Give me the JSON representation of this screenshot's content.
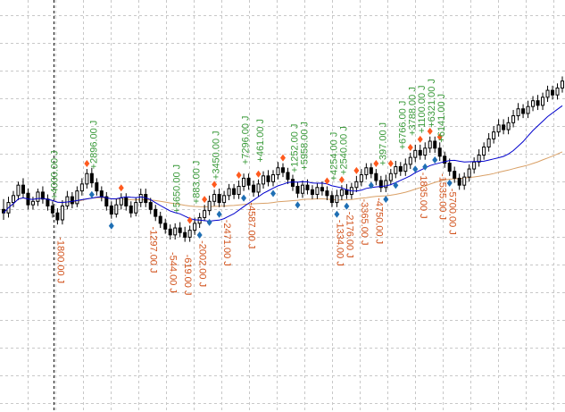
{
  "chart_data": {
    "type": "candlestick",
    "grid": true,
    "colors": {
      "bull_body": "#ffffff",
      "bear_body": "#000000",
      "candle_outline": "#000000",
      "grid": "#c8c8c8",
      "ma_fast": "#0000cc",
      "ma_slow": "#d9a066",
      "annotation_profit": "#3a9a3a",
      "annotation_loss": "#d2541e",
      "marker_buy": "#1f6fb4",
      "marker_sell": "#ff5a1e"
    },
    "candles": [
      [
        193,
        190,
        202,
        184
      ],
      [
        190,
        199,
        204,
        186
      ],
      [
        199,
        205,
        209,
        195
      ],
      [
        205,
        214,
        217,
        201
      ],
      [
        214,
        207,
        220,
        203
      ],
      [
        207,
        197,
        211,
        193
      ],
      [
        197,
        200,
        204,
        193
      ],
      [
        200,
        208,
        211,
        196
      ],
      [
        208,
        202,
        213,
        198
      ],
      [
        202,
        196,
        206,
        192
      ],
      [
        196,
        190,
        200,
        186
      ],
      [
        190,
        184,
        194,
        180
      ],
      [
        184,
        196,
        201,
        180
      ],
      [
        196,
        204,
        209,
        193
      ],
      [
        204,
        198,
        208,
        194
      ],
      [
        198,
        209,
        213,
        195
      ],
      [
        209,
        215,
        220,
        205
      ],
      [
        215,
        224,
        228,
        211
      ],
      [
        224,
        216,
        229,
        212
      ],
      [
        216,
        209,
        220,
        205
      ],
      [
        209,
        204,
        213,
        200
      ],
      [
        204,
        196,
        208,
        192
      ],
      [
        196,
        189,
        200,
        185
      ],
      [
        189,
        197,
        202,
        186
      ],
      [
        197,
        203,
        207,
        193
      ],
      [
        203,
        196,
        207,
        192
      ],
      [
        196,
        190,
        200,
        186
      ],
      [
        190,
        199,
        203,
        187
      ],
      [
        199,
        206,
        211,
        195
      ],
      [
        206,
        199,
        211,
        195
      ],
      [
        199,
        193,
        203,
        189
      ],
      [
        193,
        187,
        197,
        183
      ],
      [
        187,
        181,
        191,
        177
      ],
      [
        181,
        176,
        185,
        172
      ],
      [
        176,
        171,
        180,
        167
      ],
      [
        171,
        177,
        181,
        167
      ],
      [
        177,
        173,
        182,
        169
      ],
      [
        173,
        169,
        178,
        165
      ],
      [
        169,
        175,
        179,
        165
      ],
      [
        175,
        181,
        186,
        171
      ],
      [
        181,
        186,
        190,
        177
      ],
      [
        186,
        192,
        197,
        183
      ],
      [
        192,
        200,
        205,
        188
      ],
      [
        200,
        206,
        210,
        196
      ],
      [
        206,
        199,
        211,
        195
      ],
      [
        199,
        205,
        209,
        195
      ],
      [
        205,
        211,
        215,
        201
      ],
      [
        211,
        206,
        215,
        202
      ],
      [
        206,
        213,
        218,
        202
      ],
      [
        213,
        220,
        224,
        209
      ],
      [
        220,
        214,
        224,
        210
      ],
      [
        214,
        208,
        218,
        204
      ],
      [
        208,
        215,
        219,
        204
      ],
      [
        215,
        222,
        226,
        211
      ],
      [
        222,
        217,
        227,
        213
      ],
      [
        217,
        223,
        227,
        213
      ],
      [
        223,
        229,
        234,
        219
      ],
      [
        229,
        225,
        233,
        221
      ],
      [
        225,
        219,
        229,
        215
      ],
      [
        219,
        213,
        223,
        209
      ],
      [
        213,
        207,
        217,
        203
      ],
      [
        207,
        214,
        218,
        203
      ],
      [
        214,
        210,
        219,
        206
      ],
      [
        210,
        206,
        214,
        202
      ],
      [
        206,
        212,
        216,
        202
      ],
      [
        212,
        209,
        217,
        205
      ],
      [
        209,
        205,
        213,
        201
      ],
      [
        205,
        199,
        209,
        195
      ],
      [
        199,
        205,
        210,
        195
      ],
      [
        205,
        210,
        214,
        201
      ],
      [
        210,
        206,
        215,
        202
      ],
      [
        206,
        212,
        216,
        202
      ],
      [
        212,
        217,
        222,
        208
      ],
      [
        217,
        223,
        228,
        213
      ],
      [
        223,
        229,
        233,
        219
      ],
      [
        229,
        224,
        233,
        220
      ],
      [
        224,
        218,
        228,
        214
      ],
      [
        218,
        212,
        222,
        208
      ],
      [
        212,
        218,
        223,
        208
      ],
      [
        218,
        224,
        228,
        214
      ],
      [
        224,
        230,
        235,
        220
      ],
      [
        230,
        226,
        234,
        222
      ],
      [
        226,
        232,
        237,
        222
      ],
      [
        232,
        238,
        242,
        228
      ],
      [
        238,
        244,
        249,
        234
      ],
      [
        244,
        240,
        249,
        236
      ],
      [
        240,
        246,
        251,
        236
      ],
      [
        246,
        252,
        256,
        242
      ],
      [
        252,
        246,
        256,
        242
      ],
      [
        246,
        239,
        251,
        235
      ],
      [
        239,
        233,
        243,
        229
      ],
      [
        233,
        226,
        237,
        222
      ],
      [
        226,
        220,
        230,
        216
      ],
      [
        220,
        214,
        224,
        210
      ],
      [
        214,
        221,
        225,
        210
      ],
      [
        221,
        228,
        232,
        217
      ],
      [
        228,
        234,
        238,
        224
      ],
      [
        234,
        240,
        245,
        230
      ],
      [
        240,
        247,
        251,
        236
      ],
      [
        247,
        254,
        259,
        243
      ],
      [
        254,
        260,
        265,
        250
      ],
      [
        260,
        266,
        271,
        256
      ],
      [
        266,
        262,
        271,
        258
      ],
      [
        262,
        268,
        273,
        258
      ],
      [
        268,
        274,
        279,
        264
      ],
      [
        274,
        280,
        285,
        270
      ],
      [
        280,
        276,
        284,
        272
      ],
      [
        276,
        282,
        287,
        272
      ],
      [
        282,
        287,
        291,
        278
      ],
      [
        287,
        283,
        292,
        279
      ],
      [
        283,
        290,
        294,
        279
      ],
      [
        290,
        296,
        300,
        286
      ],
      [
        296,
        292,
        300,
        288
      ],
      [
        292,
        298,
        302,
        288
      ],
      [
        298,
        304,
        308,
        294
      ]
    ],
    "annotations_profit": [
      "+4000.00 J",
      "+2896.00 J",
      "+5650.00 J",
      "+883.00 J",
      "+3450.00 J",
      "+7296.00 J",
      "+461.00 J",
      "+1252.00 J",
      "+5958.00 J",
      "+4254.00 J",
      "+2540.00 J",
      "+397.00 J",
      "+6766.00 J",
      "+3788.00 J",
      "+1100.00 J",
      "+6321.00 J",
      "+6141.00 J"
    ],
    "annotations_loss": [
      "-1800.00 J",
      "-1297.00 J",
      "-544.00 J",
      "-619.00 J",
      "-2002.00 J",
      "-4587.00 J",
      "-2471.00 J",
      "-1334.00 J",
      "-2176.00 J",
      "-3365.00 J",
      "-4750.00 J",
      "-1835.00 J",
      "-1535.00 J",
      "-5700.00 J"
    ]
  }
}
